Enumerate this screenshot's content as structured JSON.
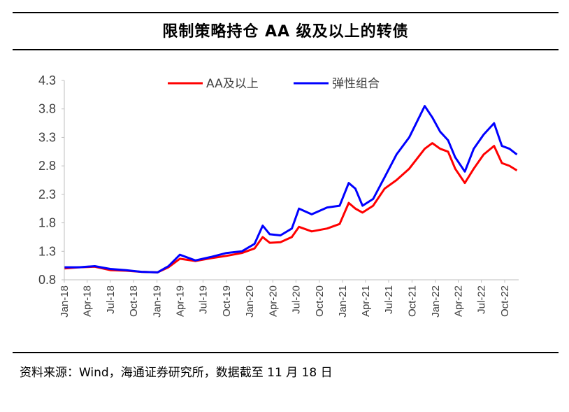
{
  "header": {
    "title": "限制策略持仓 AA 级及以上的转债"
  },
  "footer": {
    "source": "资料来源：Wind，海通证券研究所，数据截至 11 月 18 日"
  },
  "chart_data": {
    "type": "line",
    "ylim": [
      0.8,
      4.3
    ],
    "yticks": [
      "4.3",
      "3.8",
      "3.3",
      "2.8",
      "2.3",
      "1.8",
      "1.3",
      "0.8"
    ],
    "xticks": [
      "Jan-18",
      "Apr-18",
      "Jul-18",
      "Oct-18",
      "Jan-19",
      "Apr-19",
      "Jul-19",
      "Oct-19",
      "Jan-20",
      "Apr-20",
      "Jul-20",
      "Oct-20",
      "Jan-21",
      "Apr-21",
      "Jul-21",
      "Oct-21",
      "Jan-22",
      "Apr-22",
      "Jul-22",
      "Oct-22"
    ],
    "legend_position": "top",
    "grid": false,
    "x": [
      "2018-01-02",
      "2018-03-01",
      "2018-05-01",
      "2018-07-01",
      "2018-09-01",
      "2018-11-01",
      "2019-01-03",
      "2019-02-15",
      "2019-04-01",
      "2019-06-01",
      "2019-08-01",
      "2019-10-01",
      "2019-12-01",
      "2020-01-20",
      "2020-02-21",
      "2020-03-20",
      "2020-05-01",
      "2020-06-15",
      "2020-07-13",
      "2020-09-01",
      "2020-11-01",
      "2020-12-20",
      "2021-01-25",
      "2021-02-20",
      "2021-03-20",
      "2021-05-01",
      "2021-06-15",
      "2021-08-01",
      "2021-09-20",
      "2021-11-20",
      "2021-12-20",
      "2022-01-20",
      "2022-02-20",
      "2022-03-20",
      "2022-04-27",
      "2022-06-01",
      "2022-07-10",
      "2022-08-20",
      "2022-09-20",
      "2022-10-20",
      "2022-11-18"
    ],
    "series": [
      {
        "name": "AA及以上",
        "color": "#ff0000",
        "values": [
          1.0,
          1.02,
          1.03,
          0.97,
          0.96,
          0.94,
          0.93,
          1.02,
          1.17,
          1.13,
          1.18,
          1.22,
          1.27,
          1.35,
          1.55,
          1.45,
          1.46,
          1.55,
          1.73,
          1.65,
          1.7,
          1.78,
          2.15,
          2.05,
          1.98,
          2.1,
          2.4,
          2.55,
          2.75,
          3.1,
          3.2,
          3.1,
          3.05,
          2.75,
          2.5,
          2.75,
          3.0,
          3.15,
          2.85,
          2.8,
          2.72
        ]
      },
      {
        "name": "弹性组合",
        "color": "#0000ff",
        "values": [
          1.02,
          1.02,
          1.04,
          0.99,
          0.97,
          0.94,
          0.93,
          1.04,
          1.24,
          1.14,
          1.2,
          1.27,
          1.3,
          1.43,
          1.75,
          1.6,
          1.58,
          1.7,
          2.05,
          1.95,
          2.07,
          2.1,
          2.5,
          2.4,
          2.1,
          2.22,
          2.6,
          3.0,
          3.3,
          3.85,
          3.65,
          3.4,
          3.25,
          2.95,
          2.7,
          3.1,
          3.35,
          3.55,
          3.15,
          3.1,
          3.0
        ]
      }
    ]
  }
}
